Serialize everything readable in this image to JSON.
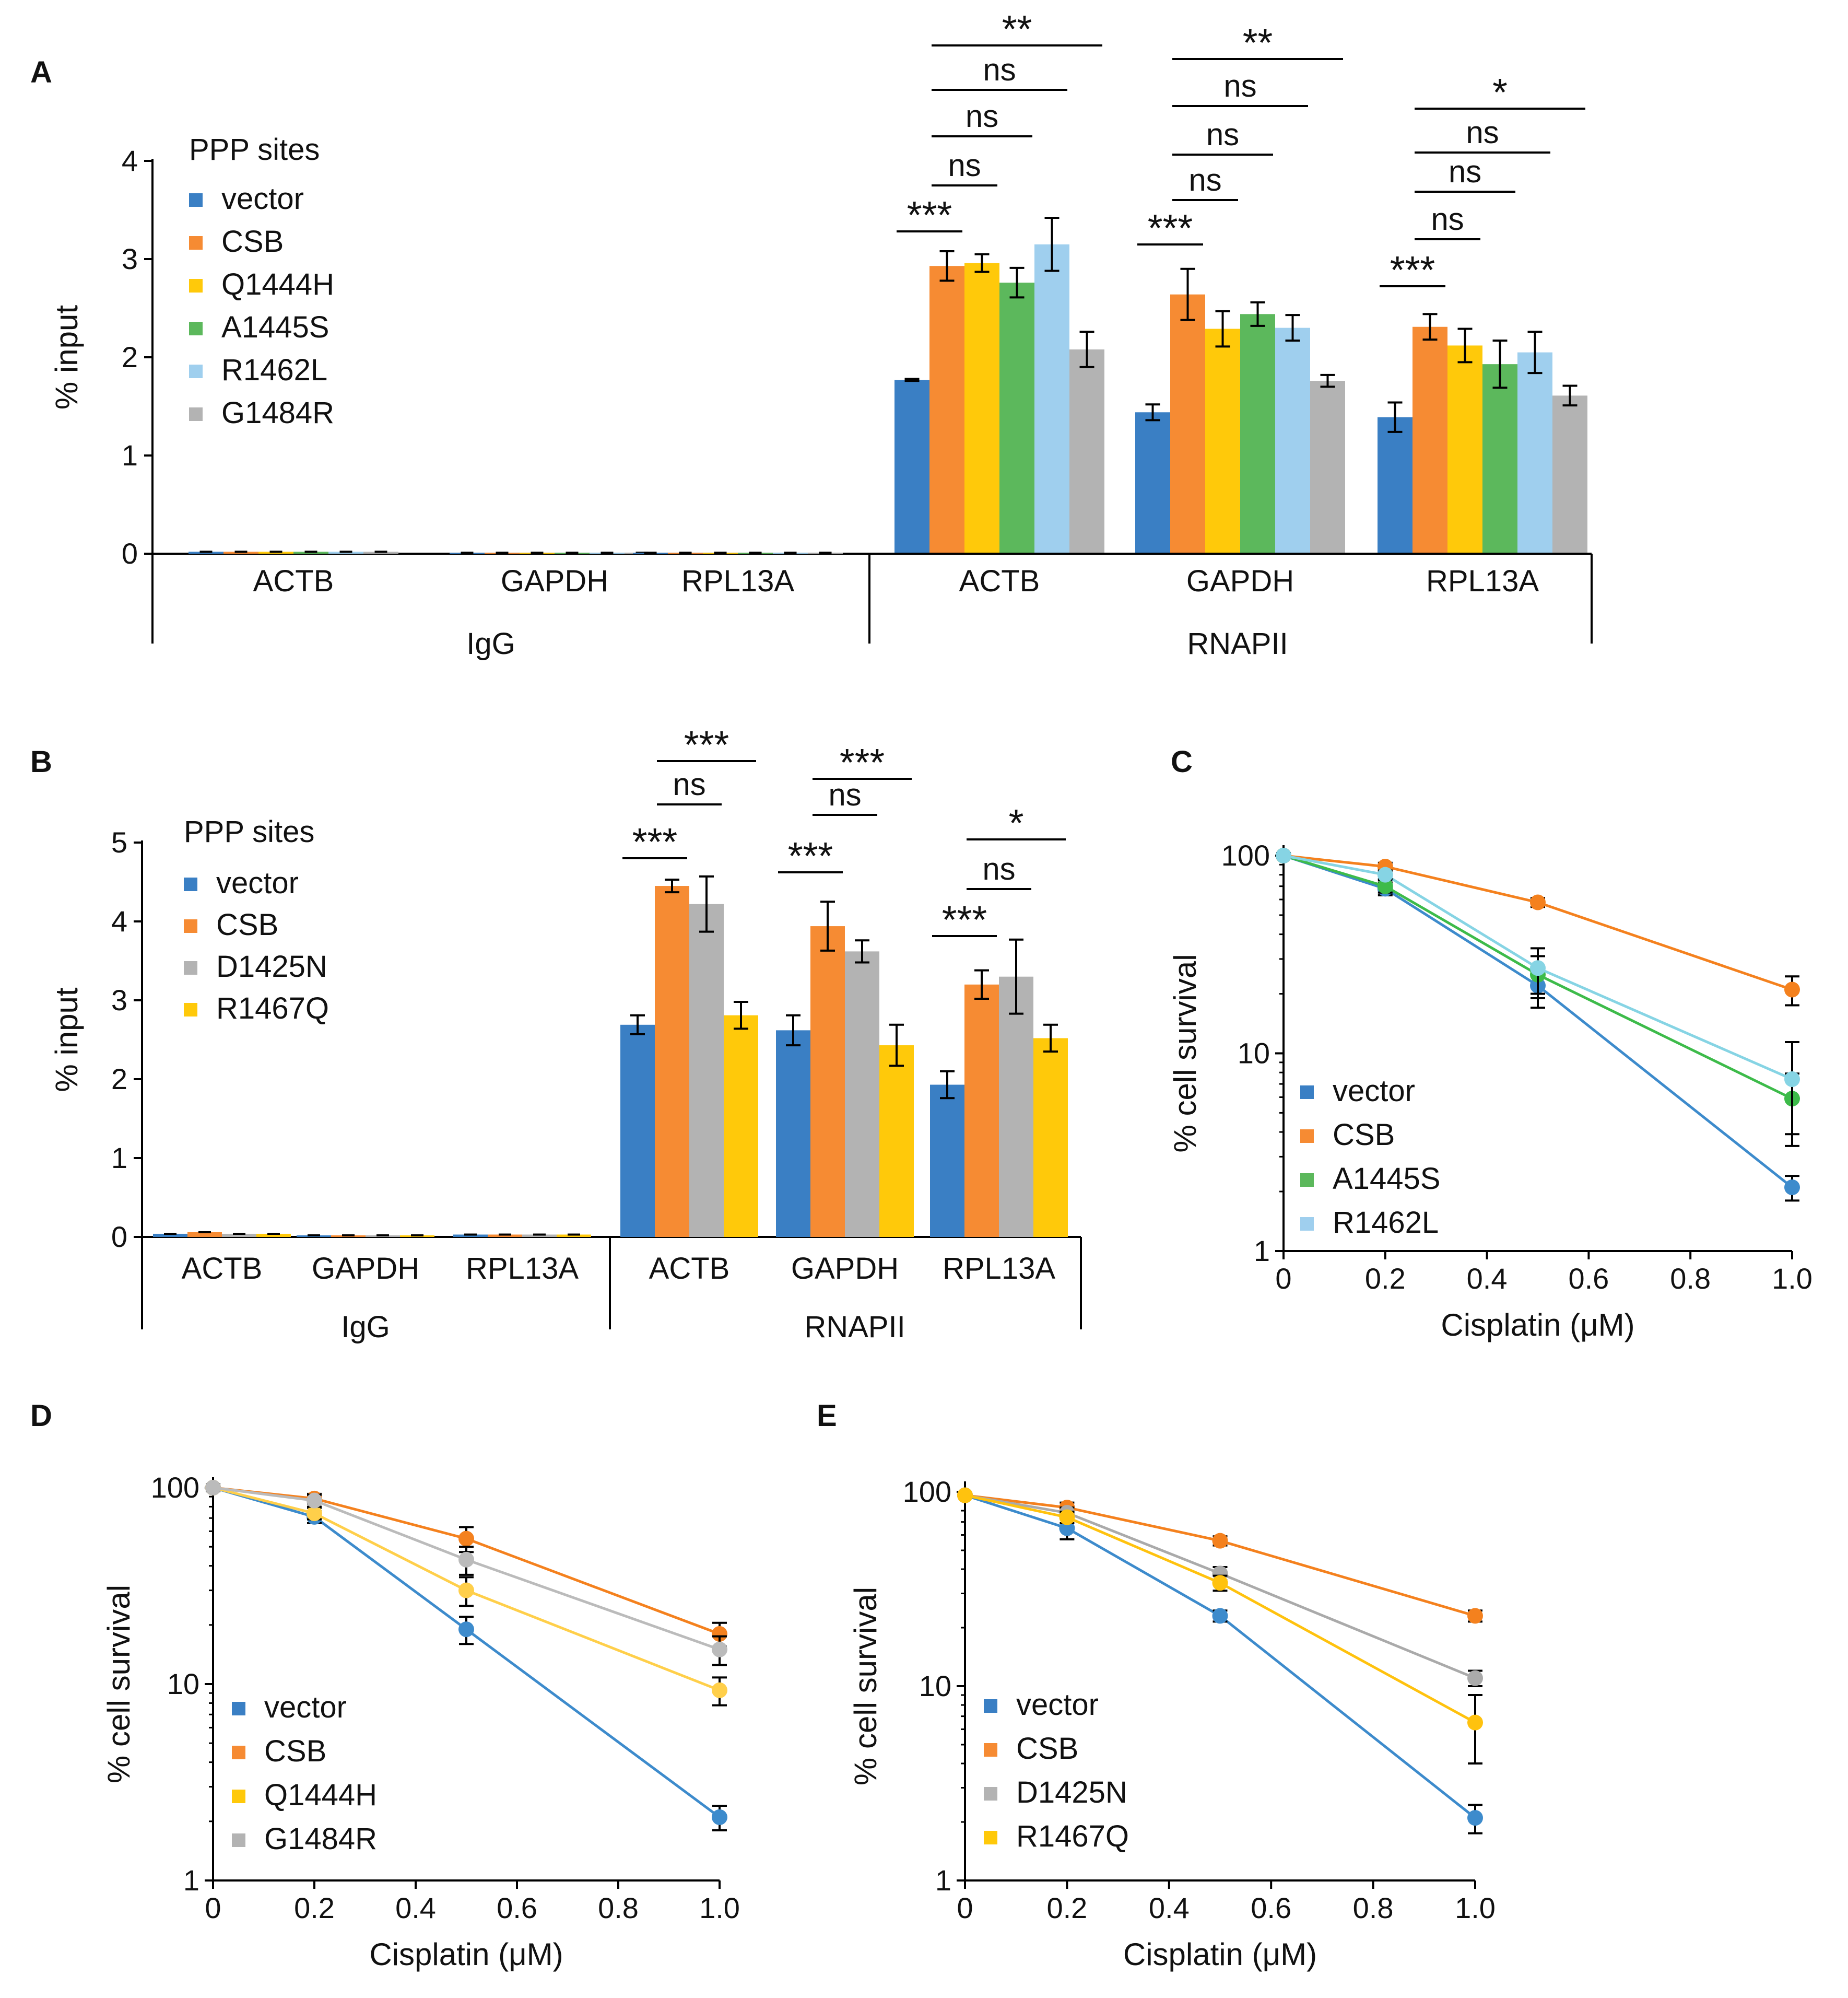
{
  "colors": {
    "vector": "#3a7fc4",
    "CSB": "#f68b33",
    "Q1444H": "#ffc90a",
    "A1445S": "#5cb85c",
    "R1462L": "#9fcfee",
    "G1484R": "#b3b3b3",
    "D1425N": "#b3b3b3",
    "R1467Q": "#ffc90a",
    "line_vector": "#3d8bcc",
    "line_CSB": "#f4811e",
    "line_A1445S": "#3dbb4a",
    "line_R1462L": "#86d4e4",
    "line_Q1444H": "#ffcf4a",
    "line_G1484R": "#bbbbbb",
    "line_D1425N": "#aaaaaa",
    "line_R1467Q": "#ffc20e"
  },
  "chart_data": [
    {
      "panel": "A",
      "type": "bar",
      "ylabel": "% input",
      "ylim": [
        0,
        4
      ],
      "yticks": [
        "0",
        "1",
        "2",
        "3",
        "4"
      ],
      "legend_title": "PPP sites",
      "legend": [
        "vector",
        "CSB",
        "Q1444H",
        "A1445S",
        "R1462L",
        "G1484R"
      ],
      "groups": [
        {
          "name": "IgG",
          "categories": [
            {
              "name": "ACTB",
              "values": [
                0.02,
                0.02,
                0.02,
                0.02,
                0.02,
                0.02
              ],
              "errors": [
                0,
                0,
                0,
                0,
                0,
                0
              ]
            },
            {
              "name": "GAPDH",
              "values": [
                0.01,
                0.01,
                0.01,
                0.01,
                0.01,
                0.01
              ],
              "errors": [
                0,
                0,
                0,
                0,
                0,
                0
              ]
            },
            {
              "name": "RPL13A",
              "values": [
                0.01,
                0.01,
                0.01,
                0.01,
                0.01,
                0.01
              ],
              "errors": [
                0,
                0,
                0,
                0,
                0,
                0
              ]
            }
          ]
        },
        {
          "name": "RNAPII",
          "categories": [
            {
              "name": "ACTB",
              "values": [
                1.77,
                2.93,
                2.96,
                2.76,
                3.15,
                2.08
              ],
              "errors": [
                0.01,
                0.15,
                0.09,
                0.15,
                0.27,
                0.18
              ]
            },
            {
              "name": "GAPDH",
              "values": [
                1.44,
                2.64,
                2.29,
                2.44,
                2.3,
                1.76
              ],
              "errors": [
                0.08,
                0.26,
                0.18,
                0.12,
                0.13,
                0.06
              ]
            },
            {
              "name": "RPL13A",
              "values": [
                1.39,
                2.31,
                2.12,
                1.93,
                2.05,
                1.61
              ],
              "errors": [
                0.15,
                0.13,
                0.17,
                0.24,
                0.21,
                0.1
              ]
            }
          ]
        }
      ],
      "significance": [
        {
          "label": "***",
          "group": 1,
          "category": 0,
          "from": 0,
          "to": 1
        },
        {
          "label": "ns",
          "group": 1,
          "category": 0,
          "from": 1,
          "to": 2
        },
        {
          "label": "ns",
          "group": 1,
          "category": 0,
          "from": 1,
          "to": 3
        },
        {
          "label": "ns",
          "group": 1,
          "category": 0,
          "from": 1,
          "to": 4
        },
        {
          "label": "**",
          "group": 1,
          "category": 0,
          "from": 1,
          "to": 5
        },
        {
          "label": "***",
          "group": 1,
          "category": 1,
          "from": 0,
          "to": 1
        },
        {
          "label": "ns",
          "group": 1,
          "category": 1,
          "from": 1,
          "to": 2
        },
        {
          "label": "ns",
          "group": 1,
          "category": 1,
          "from": 1,
          "to": 3
        },
        {
          "label": "ns",
          "group": 1,
          "category": 1,
          "from": 1,
          "to": 4
        },
        {
          "label": "**",
          "group": 1,
          "category": 1,
          "from": 1,
          "to": 5
        },
        {
          "label": "***",
          "group": 1,
          "category": 2,
          "from": 0,
          "to": 1
        },
        {
          "label": "ns",
          "group": 1,
          "category": 2,
          "from": 1,
          "to": 2
        },
        {
          "label": "ns",
          "group": 1,
          "category": 2,
          "from": 1,
          "to": 3
        },
        {
          "label": "ns",
          "group": 1,
          "category": 2,
          "from": 1,
          "to": 4
        },
        {
          "label": "*",
          "group": 1,
          "category": 2,
          "from": 1,
          "to": 5
        }
      ]
    },
    {
      "panel": "B",
      "type": "bar",
      "ylabel": "% input",
      "ylim": [
        0,
        5
      ],
      "yticks": [
        "0",
        "1",
        "2",
        "3",
        "4",
        "5"
      ],
      "legend_title": "PPP sites",
      "legend": [
        "vector",
        "CSB",
        "D1425N",
        "R1467Q"
      ],
      "groups": [
        {
          "name": "IgG",
          "categories": [
            {
              "name": "ACTB",
              "values": [
                0.04,
                0.06,
                0.04,
                0.04
              ],
              "errors": [
                0,
                0,
                0,
                0
              ]
            },
            {
              "name": "GAPDH",
              "values": [
                0.02,
                0.02,
                0.02,
                0.02
              ],
              "errors": [
                0,
                0,
                0,
                0
              ]
            },
            {
              "name": "RPL13A",
              "values": [
                0.03,
                0.03,
                0.03,
                0.03
              ],
              "errors": [
                0,
                0,
                0,
                0
              ]
            }
          ]
        },
        {
          "name": "RNAPII",
          "categories": [
            {
              "name": "ACTB",
              "values": [
                2.69,
                4.45,
                4.22,
                2.81
              ],
              "errors": [
                0.12,
                0.08,
                0.35,
                0.17
              ]
            },
            {
              "name": "GAPDH",
              "values": [
                2.62,
                3.94,
                3.62,
                2.43
              ],
              "errors": [
                0.19,
                0.31,
                0.14,
                0.26
              ]
            },
            {
              "name": "RPL13A",
              "values": [
                1.93,
                3.2,
                3.3,
                2.52
              ],
              "errors": [
                0.17,
                0.18,
                0.47,
                0.17
              ]
            }
          ]
        }
      ],
      "significance": [
        {
          "label": "***",
          "group": 1,
          "category": 0,
          "from": 0,
          "to": 1
        },
        {
          "label": "ns",
          "group": 1,
          "category": 0,
          "from": 1,
          "to": 2
        },
        {
          "label": "***",
          "group": 1,
          "category": 0,
          "from": 1,
          "to": 3
        },
        {
          "label": "***",
          "group": 1,
          "category": 1,
          "from": 0,
          "to": 1
        },
        {
          "label": "ns",
          "group": 1,
          "category": 1,
          "from": 1,
          "to": 2
        },
        {
          "label": "***",
          "group": 1,
          "category": 1,
          "from": 1,
          "to": 3
        },
        {
          "label": "***",
          "group": 1,
          "category": 2,
          "from": 0,
          "to": 1
        },
        {
          "label": "ns",
          "group": 1,
          "category": 2,
          "from": 1,
          "to": 2
        },
        {
          "label": "*",
          "group": 1,
          "category": 2,
          "from": 1,
          "to": 3
        }
      ]
    },
    {
      "panel": "C",
      "type": "line",
      "xlabel": "Cisplatin (μM)",
      "ylabel": "% cell survival",
      "yscale": "log",
      "ylim": [
        1,
        100
      ],
      "xlim": [
        0,
        1.0
      ],
      "xticks": [
        "0",
        "0.2",
        "0.4",
        "0.6",
        "0.8",
        "1.0"
      ],
      "yticks": [
        "1",
        "10",
        "100"
      ],
      "x": [
        0,
        0.2,
        0.5,
        1.0
      ],
      "series": [
        {
          "name": "vector",
          "values": [
            100,
            68,
            22,
            2.1
          ],
          "errors": [
            3,
            5,
            5,
            0.3
          ]
        },
        {
          "name": "CSB",
          "values": [
            100,
            88,
            58,
            21
          ],
          "errors": [
            3,
            4,
            3,
            3.5
          ]
        },
        {
          "name": "A1445S",
          "values": [
            100,
            70,
            25,
            5.9
          ],
          "errors": [
            3,
            5,
            6,
            2
          ]
        },
        {
          "name": "R1462L",
          "values": [
            100,
            80,
            27,
            7.4
          ],
          "errors": [
            3,
            4,
            7,
            4
          ]
        }
      ]
    },
    {
      "panel": "D",
      "type": "line",
      "xlabel": "Cisplatin (μM)",
      "ylabel": "% cell survival",
      "yscale": "log",
      "ylim": [
        1,
        100
      ],
      "xlim": [
        0,
        1.0
      ],
      "xticks": [
        "0",
        "0.2",
        "0.4",
        "0.6",
        "0.8",
        "1.0"
      ],
      "yticks": [
        "1",
        "10",
        "100"
      ],
      "x": [
        0,
        0.2,
        0.5,
        1.0
      ],
      "series": [
        {
          "name": "vector",
          "values": [
            100,
            71,
            19,
            2.1
          ],
          "errors": [
            4,
            5,
            3,
            0.3
          ]
        },
        {
          "name": "CSB",
          "values": [
            100,
            88,
            55,
            18
          ],
          "errors": [
            4,
            5,
            8,
            2.5
          ]
        },
        {
          "name": "Q1444H",
          "values": [
            100,
            74,
            30,
            9.3
          ],
          "errors": [
            4,
            5,
            5,
            1.5
          ]
        },
        {
          "name": "G1484R",
          "values": [
            100,
            86,
            43,
            15
          ],
          "errors": [
            4,
            6,
            7,
            2.5
          ]
        }
      ]
    },
    {
      "panel": "E",
      "type": "line",
      "xlabel": "Cisplatin (μM)",
      "ylabel": "% cell survival",
      "yscale": "log",
      "ylim": [
        1,
        100
      ],
      "xlim": [
        0,
        1.0
      ],
      "xticks": [
        "0",
        "0.2",
        "0.4",
        "0.6",
        "0.8",
        "1.0"
      ],
      "yticks": [
        "1",
        "10",
        "100"
      ],
      "x": [
        0,
        0.2,
        0.5,
        1.0
      ],
      "series": [
        {
          "name": "vector",
          "values": [
            96,
            65,
            23,
            2.1
          ],
          "errors": [
            2,
            8,
            1.5,
            0.35
          ]
        },
        {
          "name": "CSB",
          "values": [
            96,
            83,
            56,
            23
          ],
          "errors": [
            2,
            5,
            3,
            1.5
          ]
        },
        {
          "name": "D1425N",
          "values": [
            96,
            78,
            38,
            11
          ],
          "errors": [
            2,
            5,
            3,
            1
          ]
        },
        {
          "name": "R1467Q",
          "values": [
            96,
            74,
            34,
            6.5
          ],
          "errors": [
            2,
            5,
            3,
            2.5
          ]
        }
      ]
    }
  ]
}
